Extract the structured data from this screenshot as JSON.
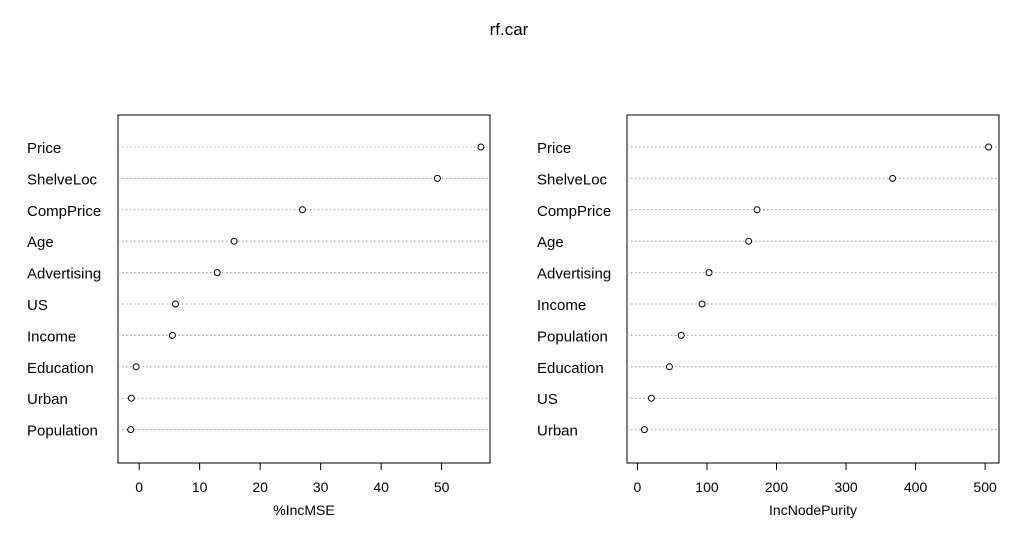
{
  "title": "rf.car",
  "chart_data": [
    {
      "type": "dotchart",
      "xlabel": "%IncMSE",
      "xlim": [
        -3.5,
        58
      ],
      "xticks": [
        0,
        10,
        20,
        30,
        40,
        50
      ],
      "categories": [
        "Price",
        "ShelveLoc",
        "CompPrice",
        "Age",
        "Advertising",
        "US",
        "Income",
        "Education",
        "Urban",
        "Population"
      ],
      "values": [
        56.5,
        49.3,
        27.0,
        15.7,
        12.9,
        6.0,
        5.5,
        -0.5,
        -1.3,
        -1.4
      ]
    },
    {
      "type": "dotchart",
      "xlabel": "IncNodePurity",
      "xlim": [
        -15,
        520
      ],
      "xticks": [
        0,
        100,
        200,
        300,
        400,
        500
      ],
      "categories": [
        "Price",
        "ShelveLoc",
        "CompPrice",
        "Age",
        "Advertising",
        "Income",
        "Population",
        "Education",
        "US",
        "Urban"
      ],
      "values": [
        505,
        367,
        172,
        160,
        103,
        93,
        63,
        46,
        20,
        10
      ]
    }
  ]
}
